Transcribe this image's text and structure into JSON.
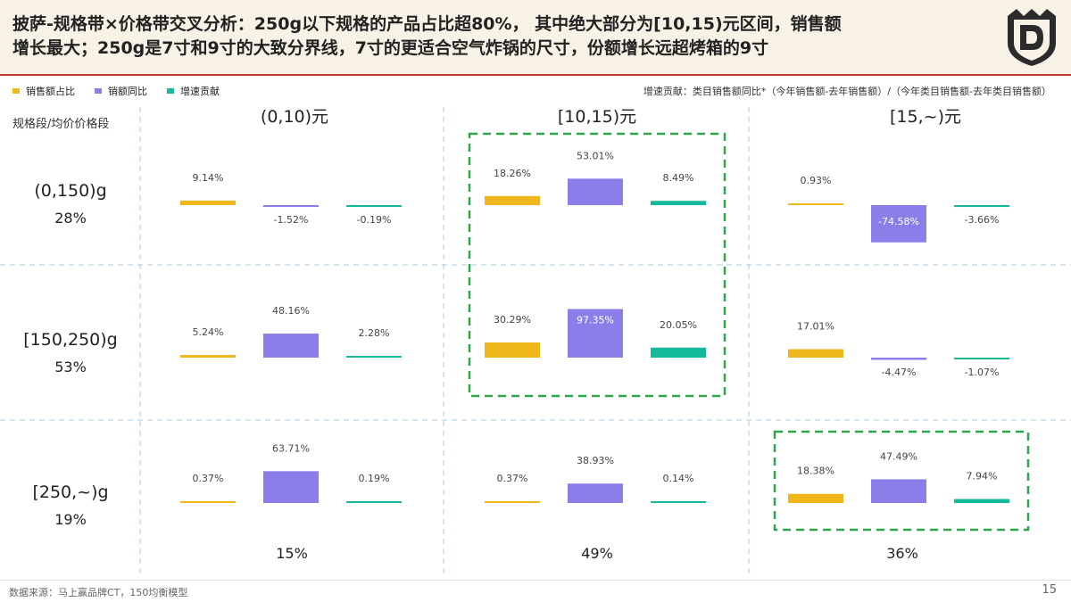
{
  "header": {
    "title_line1": "披萨-规格带×价格带交叉分析：250g以下规格的产品占比超80%， 其中绝大部分为[10,15)元区间，销售额",
    "title_line2": "增长最大；250g是7寸和9寸的大致分界线，7寸的更适合空气炸锅的尺寸，份额增长远超烤箱的9寸",
    "logo_icon": "shield-d-logo-icon"
  },
  "legend": {
    "items": [
      {
        "label": "销售额占比",
        "color": "#f0b71c"
      },
      {
        "label": "销额同比",
        "color": "#8c7ee8"
      },
      {
        "label": "增速贡献",
        "color": "#14b89a"
      }
    ],
    "note": "增速贡献：类目销售额同比*（今年销售额-去年销售额）/（今年类目销售额-去年类目销售额）"
  },
  "row_header_title": "规格段/均价价格段",
  "chart_data": {
    "type": "bar",
    "title": "披萨-规格带×价格带交叉分析",
    "series_names": [
      "销售额占比",
      "销额同比",
      "增速贡献"
    ],
    "series_colors": [
      "#f0b71c",
      "#8c7ee8",
      "#14b89a"
    ],
    "columns": [
      {
        "label": "(0,10)元",
        "share": "15%"
      },
      {
        "label": "[10,15)元",
        "share": "49%"
      },
      {
        "label": "[15,~)元",
        "share": "36%"
      }
    ],
    "rows": [
      {
        "label": "(0,150)g",
        "share": "28%"
      },
      {
        "label": "[150,250)g",
        "share": "53%"
      },
      {
        "label": "[250,~)g",
        "share": "19%"
      }
    ],
    "cells": [
      [
        {
          "values": [
            9.14,
            -1.52,
            -0.19
          ],
          "labels": [
            "9.14%",
            "-1.52%",
            "-0.19%"
          ],
          "highlight": false
        },
        {
          "values": [
            18.26,
            53.01,
            8.49
          ],
          "labels": [
            "18.26%",
            "53.01%",
            "8.49%"
          ],
          "highlight": true
        },
        {
          "values": [
            0.93,
            -74.58,
            -3.66
          ],
          "labels": [
            "0.93%",
            "-74.58%",
            "-3.66%"
          ],
          "highlight": false
        }
      ],
      [
        {
          "values": [
            5.24,
            48.16,
            2.28
          ],
          "labels": [
            "5.24%",
            "48.16%",
            "2.28%"
          ],
          "highlight": false
        },
        {
          "values": [
            30.29,
            97.35,
            20.05
          ],
          "labels": [
            "30.29%",
            "97.35%",
            "20.05%"
          ],
          "highlight": true
        },
        {
          "values": [
            17.01,
            -4.47,
            -1.07
          ],
          "labels": [
            "17.01%",
            "-4.47%",
            "-1.07%"
          ],
          "highlight": false
        }
      ],
      [
        {
          "values": [
            0.37,
            63.71,
            0.19
          ],
          "labels": [
            "0.37%",
            "63.71%",
            "0.19%"
          ],
          "highlight": false
        },
        {
          "values": [
            0.37,
            38.93,
            0.14
          ],
          "labels": [
            "0.37%",
            "38.93%",
            "0.14%"
          ],
          "highlight": false
        },
        {
          "values": [
            18.38,
            47.49,
            7.94
          ],
          "labels": [
            "18.38%",
            "47.49%",
            "7.94%"
          ],
          "highlight": true
        }
      ]
    ]
  },
  "footer": {
    "source": "数据来源：马上赢品牌CT，150均衡模型",
    "page_number": "15"
  }
}
